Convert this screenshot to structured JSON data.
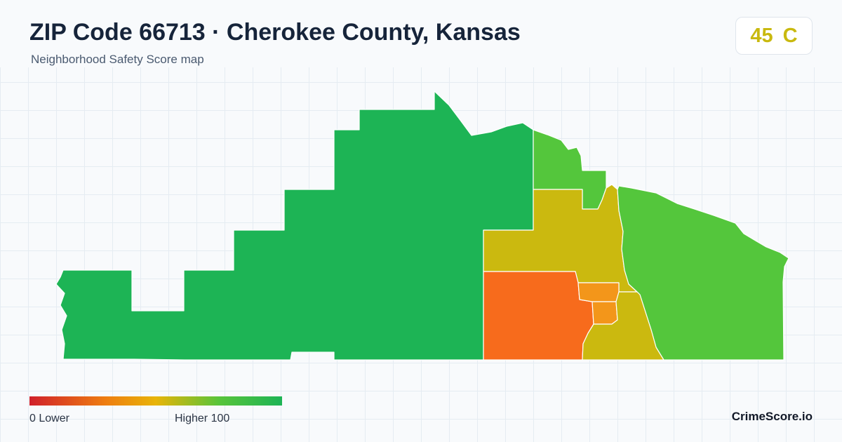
{
  "header": {
    "title": "ZIP Code 66713 · Cherokee County, Kansas",
    "subtitle": "Neighborhood Safety Score map"
  },
  "score_badge": {
    "score": "45",
    "grade": "C",
    "color": "#c9b90f"
  },
  "map": {
    "regions": [
      {
        "id": "west-large",
        "color": "#1db455"
      },
      {
        "id": "north-center",
        "color": "#54c63c"
      },
      {
        "id": "center-yellow",
        "color": "#cbb90f"
      },
      {
        "id": "east",
        "color": "#54c63c"
      },
      {
        "id": "southwest-orange",
        "color": "#f76b1c"
      },
      {
        "id": "small-orange-upper",
        "color": "#f3961a"
      },
      {
        "id": "small-orange-lower",
        "color": "#f3961a"
      },
      {
        "id": "south-yellow",
        "color": "#cbb90f"
      }
    ]
  },
  "legend": {
    "min_label": "0  Lower",
    "max_label": "Higher  100",
    "colors": [
      "#d0202a",
      "#ee7d10",
      "#e8b408",
      "#58c43a",
      "#1db455"
    ]
  },
  "brand": "CrimeScore.io"
}
